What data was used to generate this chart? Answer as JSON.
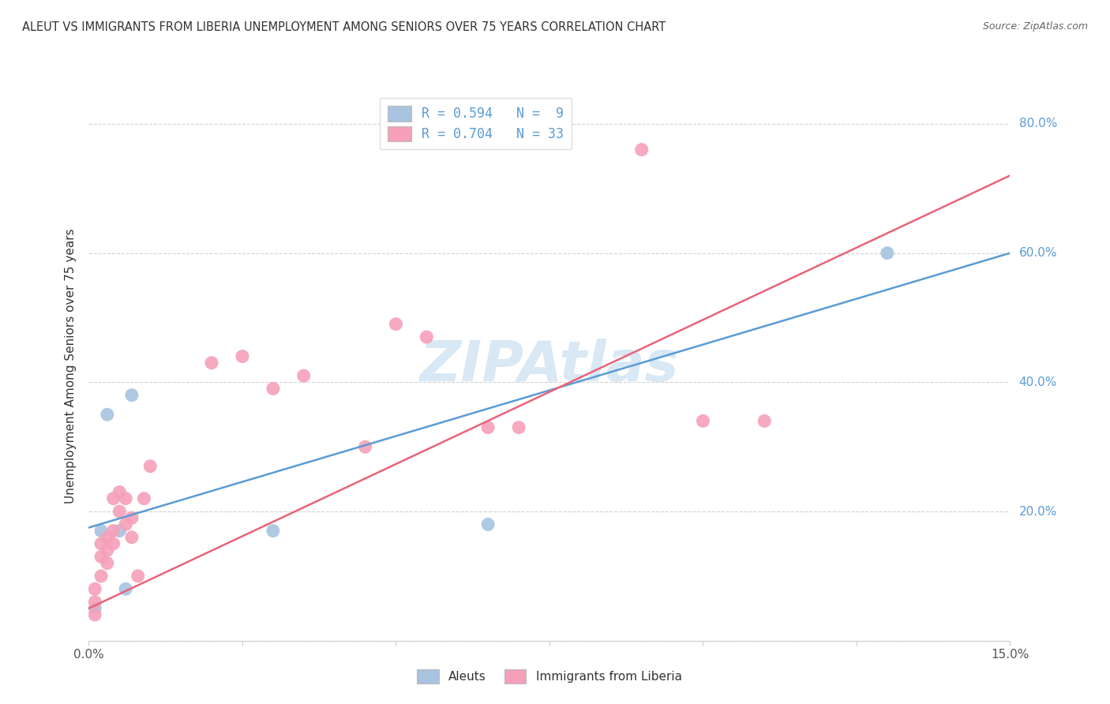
{
  "title": "ALEUT VS IMMIGRANTS FROM LIBERIA UNEMPLOYMENT AMONG SENIORS OVER 75 YEARS CORRELATION CHART",
  "source": "Source: ZipAtlas.com",
  "ylabel": "Unemployment Among Seniors over 75 years",
  "x_min": 0.0,
  "x_max": 0.15,
  "y_min": 0.0,
  "y_max": 0.85,
  "y_ticks": [
    0.0,
    0.2,
    0.4,
    0.6,
    0.8
  ],
  "y_tick_labels": [
    "",
    "20.0%",
    "40.0%",
    "60.0%",
    "80.0%"
  ],
  "x_tick_positions": [
    0.0,
    0.025,
    0.05,
    0.075,
    0.1,
    0.125,
    0.15
  ],
  "legend_label1": "R = 0.594   N =  9",
  "legend_label2": "R = 0.704   N = 33",
  "aleuts_x": [
    0.001,
    0.002,
    0.003,
    0.005,
    0.006,
    0.007,
    0.03,
    0.065,
    0.13
  ],
  "aleuts_y": [
    0.05,
    0.17,
    0.35,
    0.17,
    0.08,
    0.38,
    0.17,
    0.18,
    0.6
  ],
  "liberia_x": [
    0.001,
    0.001,
    0.001,
    0.002,
    0.002,
    0.002,
    0.003,
    0.003,
    0.003,
    0.004,
    0.004,
    0.004,
    0.005,
    0.005,
    0.006,
    0.006,
    0.007,
    0.007,
    0.008,
    0.009,
    0.01,
    0.02,
    0.025,
    0.03,
    0.035,
    0.045,
    0.05,
    0.055,
    0.065,
    0.07,
    0.09,
    0.1,
    0.11
  ],
  "liberia_y": [
    0.04,
    0.06,
    0.08,
    0.1,
    0.13,
    0.15,
    0.12,
    0.14,
    0.16,
    0.15,
    0.22,
    0.17,
    0.2,
    0.23,
    0.18,
    0.22,
    0.16,
    0.19,
    0.1,
    0.22,
    0.27,
    0.43,
    0.44,
    0.39,
    0.41,
    0.3,
    0.49,
    0.47,
    0.33,
    0.33,
    0.76,
    0.34,
    0.34
  ],
  "blue_line_x0": 0.0,
  "blue_line_y0": 0.175,
  "blue_line_x1": 0.15,
  "blue_line_y1": 0.6,
  "pink_line_x0": 0.0,
  "pink_line_y0": 0.05,
  "pink_line_x1": 0.15,
  "pink_line_y1": 0.72,
  "blue_line_color": "#5b9bd5",
  "pink_line_color": "#e8637a",
  "blue_scatter_color": "#a8c4e0",
  "pink_scatter_color": "#f5a0b8",
  "y_label_color": "#5b9bd5",
  "title_color": "#333333",
  "source_color": "#666666",
  "watermark_text": "ZIPAtlas",
  "watermark_color": "#c8dff0",
  "background_color": "#ffffff",
  "grid_color": "#cccccc",
  "scatter_size": 150,
  "bottom_legend1": "Aleuts",
  "bottom_legend2": "Immigrants from Liberia"
}
